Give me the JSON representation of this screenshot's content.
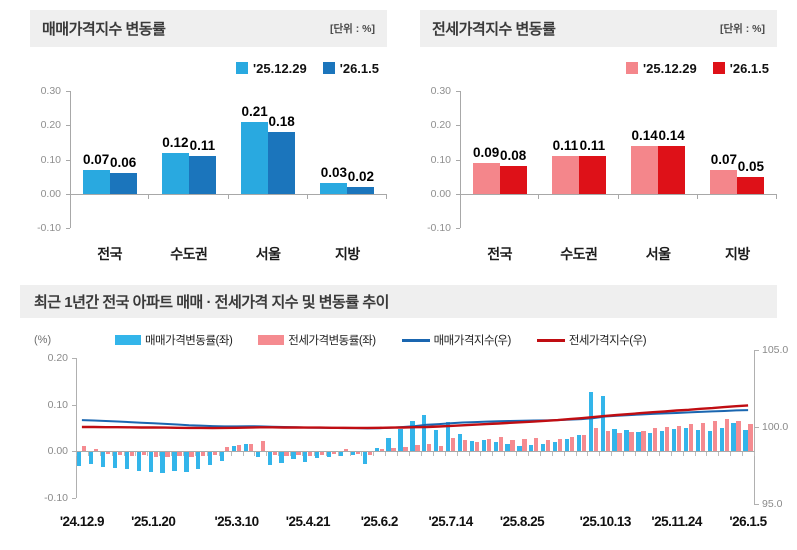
{
  "chart_data": [
    {
      "id": "sale_bar",
      "type": "bar",
      "title": "매매가격지수 변동률",
      "unit": "[단위 : %]",
      "categories": [
        "전국",
        "수도권",
        "서울",
        "지방"
      ],
      "series": [
        {
          "name": "'25.12.29",
          "color": "#29A9E0",
          "values": [
            0.07,
            0.12,
            0.21,
            0.03
          ]
        },
        {
          "name": "'26.1.5",
          "color": "#1B75BC",
          "values": [
            0.06,
            0.11,
            0.18,
            0.02
          ]
        }
      ],
      "yticks": [
        "0.30",
        "0.20",
        "0.10",
        "0.00",
        "-0.10"
      ],
      "ylim": [
        -0.1,
        0.3
      ],
      "legend_position": "top-right",
      "grid": false
    },
    {
      "id": "jeonse_bar",
      "type": "bar",
      "title": "전세가격지수 변동률",
      "unit": "[단위 : %]",
      "categories": [
        "전국",
        "수도권",
        "서울",
        "지방"
      ],
      "series": [
        {
          "name": "'25.12.29",
          "color": "#F4868B",
          "values": [
            0.09,
            0.11,
            0.14,
            0.07
          ]
        },
        {
          "name": "'26.1.5",
          "color": "#DE1118",
          "values": [
            0.08,
            0.11,
            0.14,
            0.05
          ]
        }
      ],
      "yticks": [
        "0.30",
        "0.20",
        "0.10",
        "0.00",
        "-0.10"
      ],
      "ylim": [
        -0.1,
        0.3
      ],
      "legend_position": "top-right",
      "grid": false
    },
    {
      "id": "trend",
      "type": "bar+line",
      "title": "최근 1년간 전국 아파트 매매 · 전세가격 지수 및 변동률 추이",
      "left_axis_label": "(%)",
      "left_ticks": [
        "0.20",
        "0.10",
        "0.00",
        "-0.10"
      ],
      "left_ylim": [
        -0.1,
        0.2
      ],
      "right_ticks": [
        "105.0",
        "100.0",
        "95.0"
      ],
      "right_ylim": [
        95.0,
        105.0
      ],
      "weeks": 57,
      "x_tick_labels": [
        "'24.12.9",
        "'25.1.20",
        "'25.3.10",
        "'25.4.21",
        "'25.6.2",
        "'25.7.14",
        "'25.8.25",
        "'25.10.13",
        "'25.11.24",
        "'26.1.5"
      ],
      "x_tick_indices": [
        0,
        6,
        13,
        19,
        25,
        31,
        37,
        44,
        50,
        56
      ],
      "series_bars": [
        {
          "name": "매매가격변동률(좌)",
          "color": "#33B5EA",
          "values": [
            -0.03,
            -0.026,
            -0.031,
            -0.034,
            -0.036,
            -0.039,
            -0.042,
            -0.044,
            -0.041,
            -0.043,
            -0.036,
            -0.028,
            -0.018,
            0.012,
            0.016,
            -0.01,
            -0.028,
            -0.022,
            -0.015,
            -0.02,
            -0.013,
            -0.01,
            -0.008,
            -0.006,
            -0.025,
            0.008,
            0.028,
            0.048,
            0.065,
            0.078,
            0.045,
            0.062,
            0.038,
            0.022,
            0.025,
            0.02,
            0.015,
            0.012,
            0.014,
            0.016,
            0.02,
            0.026,
            0.035,
            0.128,
            0.118,
            0.048,
            0.045,
            0.042,
            0.04,
            0.044,
            0.047,
            0.05,
            0.046,
            0.044,
            0.05,
            0.06,
            0.046
          ]
        },
        {
          "name": "전세가격변동률(좌)",
          "color": "#F58B90",
          "values": [
            0.012,
            0.005,
            -0.004,
            -0.006,
            -0.008,
            -0.006,
            -0.009,
            -0.01,
            -0.008,
            -0.01,
            -0.008,
            -0.006,
            0.01,
            0.013,
            0.016,
            0.022,
            -0.005,
            -0.008,
            -0.005,
            -0.008,
            -0.006,
            -0.004,
            0.004,
            -0.004,
            -0.005,
            0.006,
            0.008,
            0.01,
            0.013,
            0.015,
            0.012,
            0.028,
            0.024,
            0.02,
            0.027,
            0.03,
            0.024,
            0.027,
            0.029,
            0.025,
            0.027,
            0.03,
            0.034,
            0.05,
            0.044,
            0.04,
            0.042,
            0.044,
            0.05,
            0.052,
            0.055,
            0.058,
            0.06,
            0.064,
            0.07,
            0.064,
            0.058
          ]
        }
      ],
      "series_lines": [
        {
          "name": "매매가격지수(우)",
          "color": "#1A66B0",
          "values": [
            100.45,
            100.42,
            100.39,
            100.36,
            100.32,
            100.28,
            100.24,
            100.2,
            100.16,
            100.12,
            100.09,
            100.06,
            100.04,
            100.04,
            100.05,
            100.04,
            100.02,
            100.0,
            99.98,
            99.96,
            99.95,
            99.94,
            99.93,
            99.93,
            99.91,
            99.92,
            99.95,
            100.0,
            100.06,
            100.14,
            100.19,
            100.25,
            100.29,
            100.32,
            100.35,
            100.37,
            100.39,
            100.4,
            100.42,
            100.43,
            100.45,
            100.48,
            100.51,
            100.58,
            100.68,
            100.73,
            100.77,
            100.81,
            100.85,
            100.88,
            100.91,
            100.95,
            100.98,
            101.01,
            101.04,
            101.08,
            101.1
          ]
        },
        {
          "name": "전세가격지수(우)",
          "color": "#C00D12",
          "values": [
            100.0,
            100.0,
            99.99,
            99.99,
            99.98,
            99.97,
            99.97,
            99.96,
            99.95,
            99.94,
            99.94,
            99.93,
            99.94,
            99.95,
            99.96,
            99.98,
            99.98,
            99.97,
            99.97,
            99.96,
            99.96,
            99.95,
            99.95,
            99.94,
            99.94,
            99.95,
            99.96,
            99.97,
            99.99,
            100.0,
            100.03,
            100.07,
            100.11,
            100.15,
            100.19,
            100.23,
            100.27,
            100.31,
            100.35,
            100.4,
            100.45,
            100.51,
            100.57,
            100.64,
            100.72,
            100.78,
            100.84,
            100.9,
            100.96,
            101.01,
            101.07,
            101.12,
            101.18,
            101.23,
            101.29,
            101.35,
            101.4
          ]
        }
      ],
      "grid": false,
      "legend_position": "top-center"
    }
  ]
}
